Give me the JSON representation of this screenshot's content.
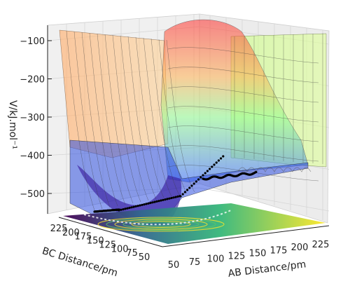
{
  "chart_data": {
    "type": "surface3d",
    "xlabel": "AB Distance/pm",
    "ylabel": "BC Distance/pm",
    "zlabel": "V/kJ.mol⁻¹",
    "x_ticks": [
      "50",
      "75",
      "100",
      "125",
      "150",
      "175",
      "200",
      "225"
    ],
    "y_ticks": [
      "225",
      "200",
      "175",
      "150",
      "125",
      "100",
      "75",
      "50"
    ],
    "z_ticks": [
      "−100",
      "−200",
      "−300",
      "−400",
      "−500"
    ],
    "x_range": [
      50,
      240
    ],
    "y_range": [
      50,
      240
    ],
    "z_range": [
      -570,
      -75
    ],
    "colormap": "jet",
    "contour_colormap": "viridis",
    "trajectory_color": "#000000",
    "grid": true,
    "legend": "none"
  }
}
